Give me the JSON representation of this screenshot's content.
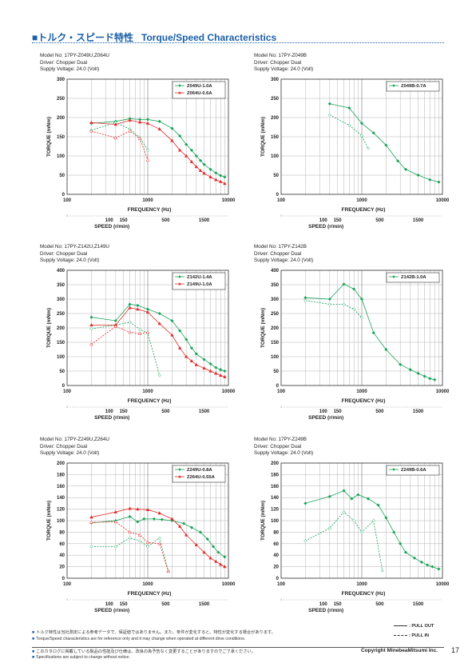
{
  "page_title": {
    "square": "■",
    "jp": "トルク・スピード特性",
    "en": "Torque/Speed Characteristics"
  },
  "chart_data": [
    {
      "type": "line",
      "info": [
        "Model No: 17PY-Z049U,Z064U",
        "Driver: Chopper Dual",
        "Supply Voltage: 24.0 (Volt)"
      ],
      "ylabel": "TORQUE (mNm)",
      "xlabel": "FREQUENCY (Hz)",
      "speed_label": "SPEED (r/min)",
      "x_scale": "log",
      "xlim": [
        100,
        10000
      ],
      "ylim": [
        0,
        300
      ],
      "x_ticks": [
        "100",
        "1000",
        "10000"
      ],
      "y_ticks": [
        0,
        50,
        100,
        150,
        200,
        250,
        300
      ],
      "speed_ticks": [
        {
          "label": "100",
          "hz": 333
        },
        {
          "label": "150",
          "hz": 500
        },
        {
          "label": "500",
          "hz": 1667
        },
        {
          "label": "1500",
          "hz": 5000
        }
      ],
      "grid": true,
      "legend_position": "top-right",
      "series": [
        {
          "name": "Z049U-1.0A",
          "color": "#1aa35a",
          "marker": "diamond",
          "type": "pull-out",
          "x": [
            200,
            400,
            600,
            800,
            1000,
            1400,
            2000,
            2500,
            3000,
            3500,
            4000,
            4500,
            5000,
            6000,
            7000,
            8000,
            9000
          ],
          "y": [
            185,
            190,
            197,
            195,
            195,
            190,
            172,
            152,
            130,
            115,
            100,
            88,
            78,
            65,
            56,
            49,
            45
          ]
        },
        {
          "name": "Z049U-1.0A",
          "color": "#1aa35a",
          "marker": "diamond",
          "type": "pull-in",
          "x": [
            200,
            400,
            600,
            800,
            1000
          ],
          "y": [
            167,
            187,
            170,
            148,
            115
          ]
        },
        {
          "name": "Z064U-0.6A",
          "color": "#e32b2b",
          "marker": "triangle",
          "type": "pull-out",
          "x": [
            200,
            400,
            600,
            800,
            1000,
            1400,
            2000,
            2500,
            3000,
            3500,
            4000,
            4500,
            5000,
            6000,
            7000,
            8000,
            9000
          ],
          "y": [
            187,
            182,
            193,
            188,
            185,
            170,
            140,
            115,
            100,
            85,
            72,
            62,
            55,
            45,
            38,
            33,
            28
          ]
        },
        {
          "name": "Z064U-0.6A",
          "color": "#e32b2b",
          "marker": "triangle",
          "type": "pull-in",
          "x": [
            200,
            400,
            600,
            800,
            1000
          ],
          "y": [
            165,
            147,
            165,
            145,
            90
          ]
        }
      ]
    },
    {
      "type": "line",
      "info": [
        "Model No: 17PY-Z049B",
        "Driver: Chopper Dual",
        "Supply Voltage: 24.0 (Volt)"
      ],
      "ylabel": "TORQUE (mNm)",
      "xlabel": "FREQUENCY (Hz)",
      "speed_label": "SPEED (r/min)",
      "x_scale": "log",
      "xlim": [
        100,
        10000
      ],
      "ylim": [
        0,
        300
      ],
      "x_ticks": [
        "100",
        "1000",
        "10000"
      ],
      "y_ticks": [
        0,
        50,
        100,
        150,
        200,
        250,
        300
      ],
      "speed_ticks": [
        {
          "label": "100",
          "hz": 333
        },
        {
          "label": "150",
          "hz": 500
        },
        {
          "label": "500",
          "hz": 1667
        },
        {
          "label": "1500",
          "hz": 5000
        }
      ],
      "grid": true,
      "legend_position": "top-right",
      "series": [
        {
          "name": "Z049B-0.7A",
          "color": "#1aa35a",
          "marker": "diamond",
          "type": "pull-out",
          "x": [
            400,
            700,
            1000,
            1400,
            2000,
            2800,
            3500,
            5000,
            7000,
            9000
          ],
          "y": [
            236,
            225,
            185,
            160,
            128,
            87,
            65,
            50,
            38,
            32
          ]
        },
        {
          "name": "Z049B-0.7A",
          "color": "#1aa35a",
          "marker": "diamond",
          "type": "pull-in",
          "x": [
            400,
            700,
            1000,
            1200
          ],
          "y": [
            207,
            180,
            153,
            120
          ]
        }
      ]
    },
    {
      "type": "line",
      "info": [
        "Model No: 17PY-Z142U,Z149U",
        "Driver: Chopper Dual",
        "Supply Voltage: 24.0 (Volt)"
      ],
      "ylabel": "TORQUE (mNm)",
      "xlabel": "FREQUENCY (Hz)",
      "speed_label": "SPEED (r/min)",
      "x_scale": "log",
      "xlim": [
        100,
        10000
      ],
      "ylim": [
        0,
        400
      ],
      "x_ticks": [
        "100",
        "1000",
        "10000"
      ],
      "y_ticks": [
        0,
        50,
        100,
        150,
        200,
        250,
        300,
        350,
        400
      ],
      "speed_ticks": [
        {
          "label": "100",
          "hz": 333
        },
        {
          "label": "150",
          "hz": 500
        },
        {
          "label": "500",
          "hz": 1667
        },
        {
          "label": "1500",
          "hz": 5000
        }
      ],
      "grid": true,
      "legend_position": "top-right",
      "series": [
        {
          "name": "Z142U-1.4A",
          "color": "#1aa35a",
          "marker": "diamond",
          "type": "pull-out",
          "x": [
            200,
            400,
            600,
            750,
            1000,
            1400,
            2000,
            2500,
            3000,
            3500,
            4000,
            5000,
            6000,
            7000,
            8000,
            9000
          ],
          "y": [
            237,
            225,
            282,
            278,
            265,
            250,
            225,
            190,
            160,
            130,
            110,
            90,
            75,
            62,
            55,
            50
          ]
        },
        {
          "name": "Z142U-1.4A",
          "color": "#1aa35a",
          "marker": "diamond",
          "type": "pull-in",
          "x": [
            200,
            400,
            600,
            800,
            1000,
            1400
          ],
          "y": [
            197,
            210,
            220,
            195,
            182,
            35
          ]
        },
        {
          "name": "Z149U-1.0A",
          "color": "#e32b2b",
          "marker": "triangle",
          "type": "pull-out",
          "x": [
            200,
            400,
            600,
            750,
            1000,
            1400,
            2000,
            2500,
            3000,
            3500,
            4000,
            5000,
            6000,
            7000,
            8000,
            9000
          ],
          "y": [
            210,
            210,
            270,
            265,
            255,
            215,
            175,
            130,
            100,
            85,
            72,
            60,
            50,
            42,
            35,
            30
          ]
        },
        {
          "name": "Z149U-1.0A",
          "color": "#e32b2b",
          "marker": "triangle",
          "type": "pull-in",
          "x": [
            200,
            400,
            600,
            800,
            1000
          ],
          "y": [
            143,
            205,
            185,
            180,
            185
          ]
        }
      ]
    },
    {
      "type": "line",
      "info": [
        "Model No: 17PY-Z142B",
        "Driver: Chopper Dual",
        "Supply Voltage: 24.0 (Volt)"
      ],
      "ylabel": "TORQUE (mNm)",
      "xlabel": "FREQUENCY (Hz)",
      "speed_label": "SPEED (r/min)",
      "x_scale": "log",
      "xlim": [
        100,
        10000
      ],
      "ylim": [
        0,
        400
      ],
      "x_ticks": [
        "100",
        "1000",
        "10000"
      ],
      "y_ticks": [
        0,
        50,
        100,
        150,
        200,
        250,
        300,
        350,
        400
      ],
      "speed_ticks": [
        {
          "label": "100",
          "hz": 333
        },
        {
          "label": "150",
          "hz": 500
        },
        {
          "label": "500",
          "hz": 1667
        },
        {
          "label": "1500",
          "hz": 5000
        }
      ],
      "grid": true,
      "legend_position": "top-right",
      "series": [
        {
          "name": "Z142B-1.0A",
          "color": "#1aa35a",
          "marker": "diamond",
          "type": "pull-out",
          "x": [
            200,
            400,
            600,
            800,
            1000,
            1400,
            2000,
            3000,
            4000,
            5000,
            6000,
            7000,
            8000
          ],
          "y": [
            305,
            300,
            352,
            335,
            300,
            183,
            125,
            73,
            55,
            42,
            32,
            24,
            20
          ]
        },
        {
          "name": "Z142B-1.0A",
          "color": "#1aa35a",
          "marker": "diamond",
          "type": "pull-in",
          "x": [
            200,
            400,
            600,
            800,
            1000
          ],
          "y": [
            295,
            282,
            282,
            265,
            235
          ]
        }
      ]
    },
    {
      "type": "line",
      "info": [
        "Model No: 17PY-Z249U,Z264U",
        "Driver: Chopper Dual",
        "Supply Voltage: 24.0 (Volt)"
      ],
      "ylabel": "TORQUE (mNm)",
      "xlabel": "FREQUENCY (Hz)",
      "speed_label": "SPEED (r/min)",
      "x_scale": "log",
      "xlim": [
        100,
        10000
      ],
      "ylim": [
        0,
        200
      ],
      "x_ticks": [
        "100",
        "1000",
        "10000"
      ],
      "y_ticks": [
        0,
        20,
        40,
        60,
        80,
        100,
        120,
        140,
        160,
        180,
        200
      ],
      "speed_ticks": [
        {
          "label": "100",
          "hz": 333
        },
        {
          "label": "150",
          "hz": 500
        },
        {
          "label": "500",
          "hz": 1667
        },
        {
          "label": "1500",
          "hz": 5000
        }
      ],
      "grid": true,
      "legend_position": "top-right",
      "series": [
        {
          "name": "Z249U-0.8A",
          "color": "#1aa35a",
          "marker": "diamond",
          "type": "pull-out",
          "x": [
            200,
            400,
            600,
            750,
            900,
            1200,
            1500,
            2000,
            2800,
            3500,
            4500,
            5500,
            6500,
            7500,
            9000
          ],
          "y": [
            96,
            100,
            107,
            98,
            103,
            103,
            102,
            100,
            95,
            88,
            80,
            68,
            55,
            45,
            37
          ]
        },
        {
          "name": "Z249U-0.8A",
          "color": "#1aa35a",
          "marker": "diamond",
          "type": "pull-in",
          "x": [
            200,
            400,
            600,
            800,
            1000,
            1400,
            1800
          ],
          "y": [
            55,
            55,
            70,
            65,
            55,
            70,
            12
          ]
        },
        {
          "name": "Z264U-0.55A",
          "color": "#e32b2b",
          "marker": "triangle",
          "type": "pull-out",
          "x": [
            200,
            400,
            600,
            750,
            1000,
            1400,
            2000,
            2500,
            3000,
            4000,
            5000,
            6000,
            7000,
            8000,
            9000
          ],
          "y": [
            106,
            115,
            121,
            120,
            119,
            113,
            103,
            90,
            75,
            58,
            45,
            35,
            29,
            24,
            20
          ]
        },
        {
          "name": "Z264U-0.55A",
          "color": "#e32b2b",
          "marker": "triangle",
          "type": "pull-in",
          "x": [
            200,
            400,
            600,
            800,
            1000,
            1400,
            1800
          ],
          "y": [
            97,
            98,
            80,
            75,
            62,
            60,
            12
          ]
        }
      ]
    },
    {
      "type": "line",
      "info": [
        "Model No: 17PY-Z249B",
        "Driver: Chopper Dual",
        "Supply Voltage: 24.0 (Volt)"
      ],
      "ylabel": "TORQUE (mNm)",
      "xlabel": "FREQUENCY (Hz)",
      "speed_label": "SPEED (r/min)",
      "x_scale": "log",
      "xlim": [
        100,
        10000
      ],
      "ylim": [
        0,
        200
      ],
      "x_ticks": [
        "100",
        "1000",
        "10000"
      ],
      "y_ticks": [
        0,
        20,
        40,
        60,
        80,
        100,
        120,
        140,
        160,
        180,
        200
      ],
      "speed_ticks": [
        {
          "label": "100",
          "hz": 333
        },
        {
          "label": "150",
          "hz": 500
        },
        {
          "label": "500",
          "hz": 1667
        },
        {
          "label": "1500",
          "hz": 5000
        }
      ],
      "grid": true,
      "legend_position": "top-right",
      "series": [
        {
          "name": "Z249B-0.6A",
          "color": "#1aa35a",
          "marker": "diamond",
          "type": "pull-out",
          "x": [
            200,
            400,
            600,
            750,
            900,
            1200,
            1600,
            2000,
            2500,
            3000,
            3500,
            4500,
            5500,
            6500,
            7500,
            9000
          ],
          "y": [
            130,
            142,
            152,
            138,
            145,
            138,
            127,
            105,
            80,
            60,
            45,
            35,
            28,
            23,
            20,
            16
          ]
        },
        {
          "name": "Z249B-0.6A",
          "color": "#1aa35a",
          "marker": "diamond",
          "type": "pull-in",
          "x": [
            200,
            400,
            600,
            800,
            1000,
            1400,
            1800
          ],
          "y": [
            65,
            87,
            115,
            100,
            80,
            100,
            13
          ]
        }
      ]
    }
  ],
  "footer": {
    "note_jp": "トルク特性は当社測定による参考データで、保証値ではありません。また、条件が変化すると、特性が変化する場合があります。",
    "note_en": "Torque/Speed characteristics are for reference only and it may change when operated at different drive conditions.",
    "note2_jp": "このカタログに掲載している製品の性能及び仕様は、改良の為予告なく変更することがありますのでご了承ください。",
    "note2_en": "Specifications are subject to change without notice.",
    "bullet": "■",
    "pull_out": ": PULL OUT",
    "pull_in": ": PULL IN",
    "copyright": "Copyright MinebeaMitsumi Inc.",
    "page_number": "17"
  }
}
